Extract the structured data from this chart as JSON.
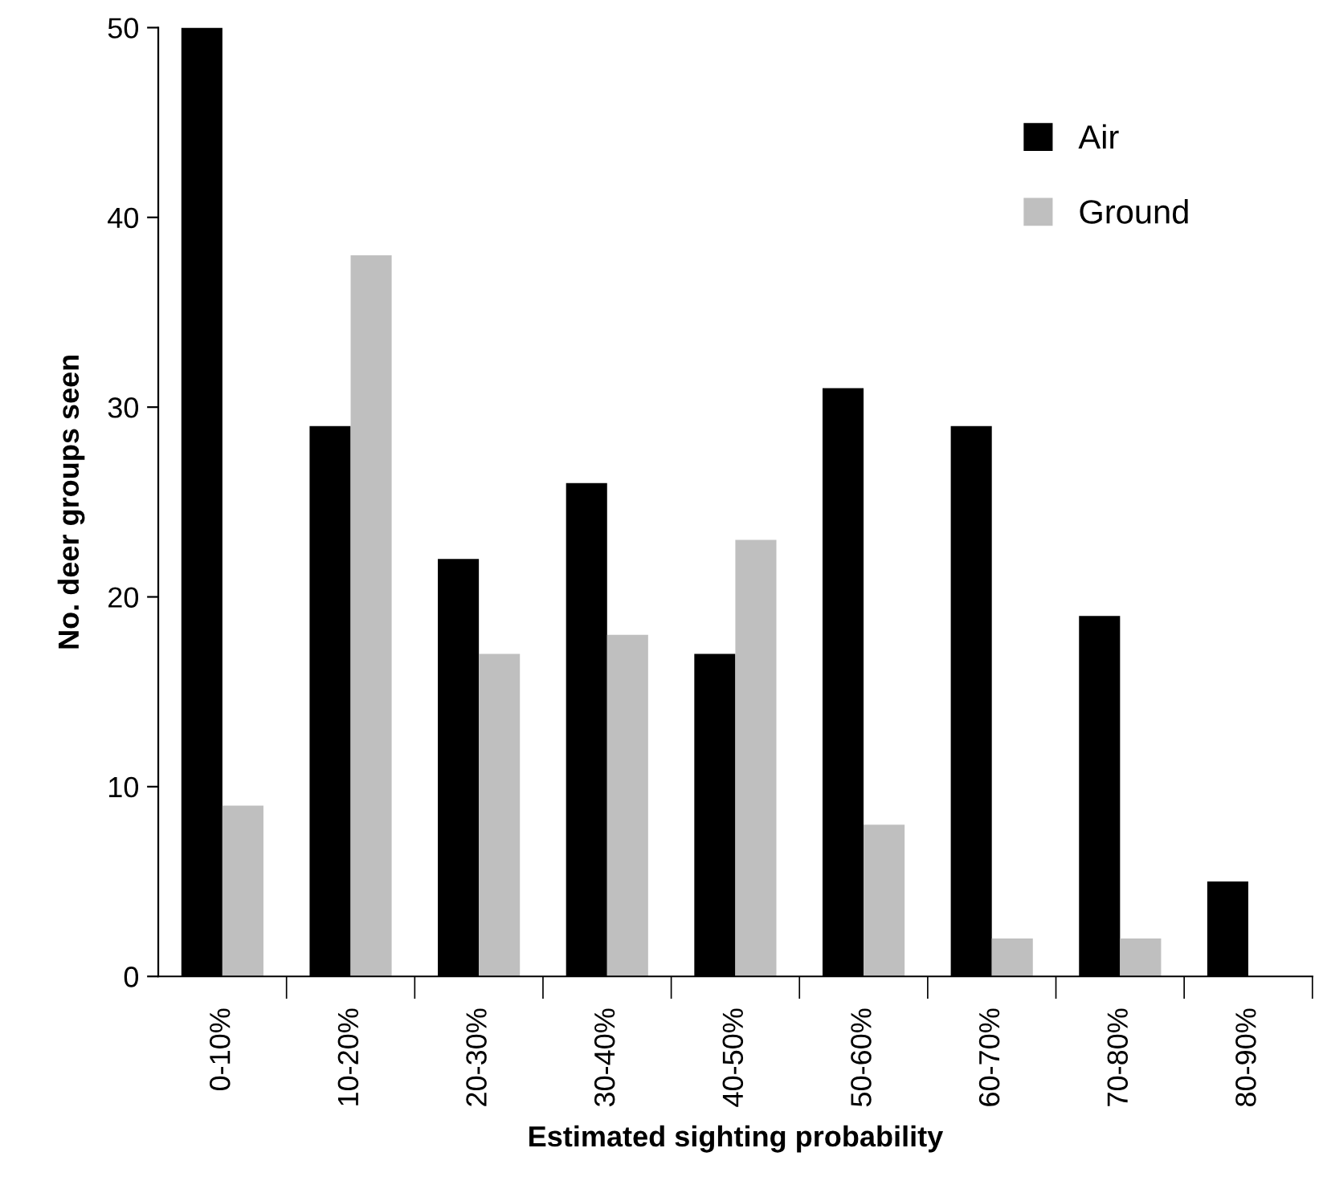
{
  "chart_data": {
    "type": "bar",
    "xlabel": "Estimated sighting probability",
    "ylabel": "No. deer groups seen",
    "categories": [
      "0-10%",
      "10-20%",
      "20-30%",
      "30-40%",
      "40-50%",
      "50-60%",
      "60-70%",
      "70-80%",
      "80-90%"
    ],
    "series": [
      {
        "name": "Air",
        "color": "#000000",
        "values": [
          50,
          29,
          22,
          26,
          17,
          31,
          29,
          19,
          5
        ]
      },
      {
        "name": "Ground",
        "color": "#bfbfbf",
        "values": [
          9,
          38,
          17,
          18,
          23,
          8,
          2,
          2,
          0
        ]
      }
    ],
    "ylim": [
      0,
      50
    ],
    "yticks": [
      0,
      10,
      20,
      30,
      40,
      50
    ],
    "grid": false,
    "legend": "top right"
  }
}
